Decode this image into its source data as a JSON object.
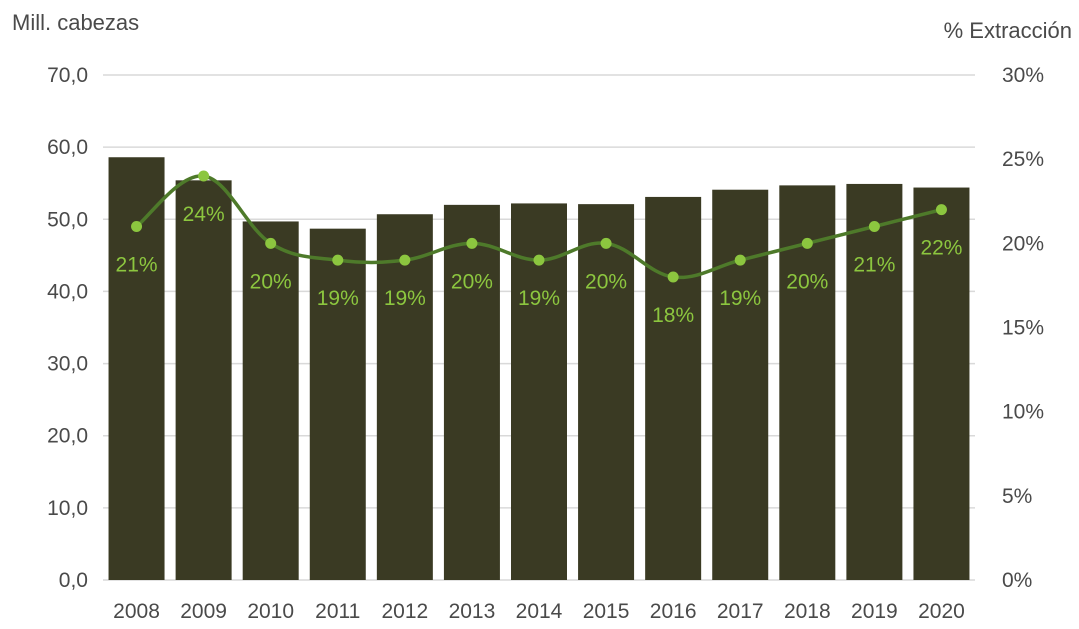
{
  "chart_data": {
    "type": "bar",
    "categories": [
      "2008",
      "2009",
      "2010",
      "2011",
      "2012",
      "2013",
      "2014",
      "2015",
      "2016",
      "2017",
      "2018",
      "2019",
      "2020"
    ],
    "series": [
      {
        "type": "bar",
        "axis": "left",
        "values": [
          58.6,
          55.4,
          49.7,
          48.7,
          50.7,
          52.0,
          52.2,
          52.1,
          53.1,
          54.1,
          54.7,
          54.9,
          54.4
        ]
      },
      {
        "type": "line",
        "axis": "right",
        "values": [
          21,
          24,
          20,
          19,
          19,
          20,
          19,
          20,
          18,
          19,
          20,
          21,
          22
        ],
        "labels": [
          "21%",
          "24%",
          "20%",
          "19%",
          "19%",
          "20%",
          "19%",
          "20%",
          "18%",
          "19%",
          "20%",
          "21%",
          "22%"
        ]
      }
    ],
    "ylabel": "Mill. cabezas",
    "ylabel_right": "% Extracción",
    "ylim": [
      0,
      70
    ],
    "ylim_right": [
      0,
      30
    ],
    "yticks": [
      "0,0",
      "10,0",
      "20,0",
      "30,0",
      "40,0",
      "50,0",
      "60,0",
      "70,0"
    ],
    "yticks_right": [
      "0%",
      "5%",
      "10%",
      "15%",
      "20%",
      "25%",
      "30%"
    ],
    "grid": true,
    "colors": {
      "bars": "#3a3a23",
      "line": "#4e7a2a",
      "markers": "#8cc63f",
      "grid": "#d9d9d9"
    }
  }
}
